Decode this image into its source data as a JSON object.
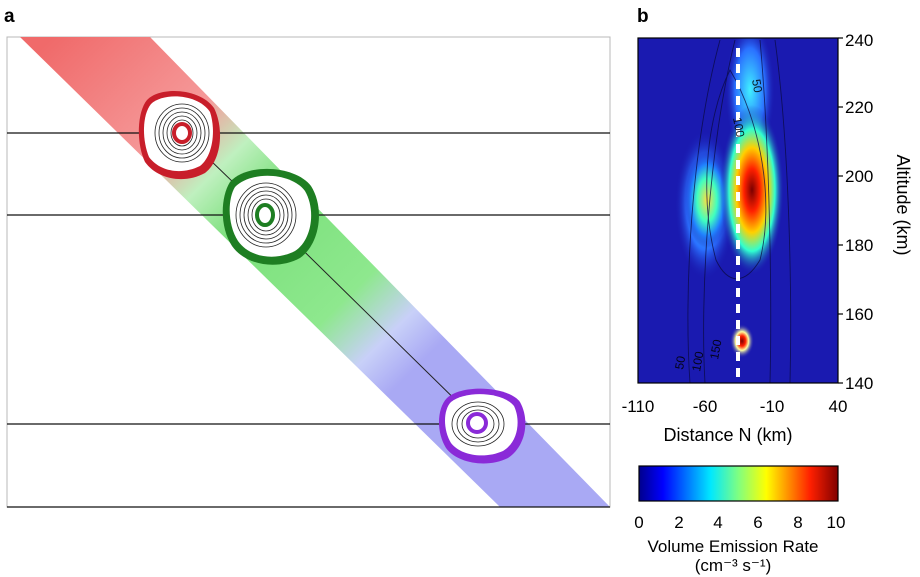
{
  "panels": {
    "a": {
      "letter": "a"
    },
    "b": {
      "letter": "b"
    }
  },
  "colors": {
    "red_band": "#f06a6a",
    "green_band": "#7be07b",
    "blue_band": "#a9a9f4",
    "red_blob": "#c81e2a",
    "green_blob": "#1e7e22",
    "purple_blob": "#8a2ad8",
    "heatmap_bg": "#1a1ab0"
  },
  "chart_data": {
    "type": "heatmap",
    "xlabel": "Distance N (km)",
    "ylabel": "Altitude (km)",
    "xlim": [
      -110,
      40
    ],
    "ylim": [
      140,
      240
    ],
    "x_ticks": [
      "-110",
      "-60",
      "-10",
      "40"
    ],
    "y_ticks": [
      "140",
      "160",
      "180",
      "200",
      "220",
      "240"
    ],
    "contour_labels": [
      "50",
      "100",
      "50",
      "100",
      "150"
    ],
    "hotspots": [
      {
        "x": -20,
        "y": 196,
        "value": 10
      },
      {
        "x": -30,
        "y": 152,
        "value": 10
      },
      {
        "x": -60,
        "y": 195,
        "value": 5
      },
      {
        "x": -20,
        "y": 225,
        "value": 4
      }
    ],
    "colorbar": {
      "title_line1": "Volume Emission Rate",
      "title_line2": "(cm⁻³ s⁻¹)",
      "ticks": [
        "0",
        "2",
        "4",
        "6",
        "8",
        "10"
      ],
      "range": [
        0,
        10
      ]
    }
  }
}
